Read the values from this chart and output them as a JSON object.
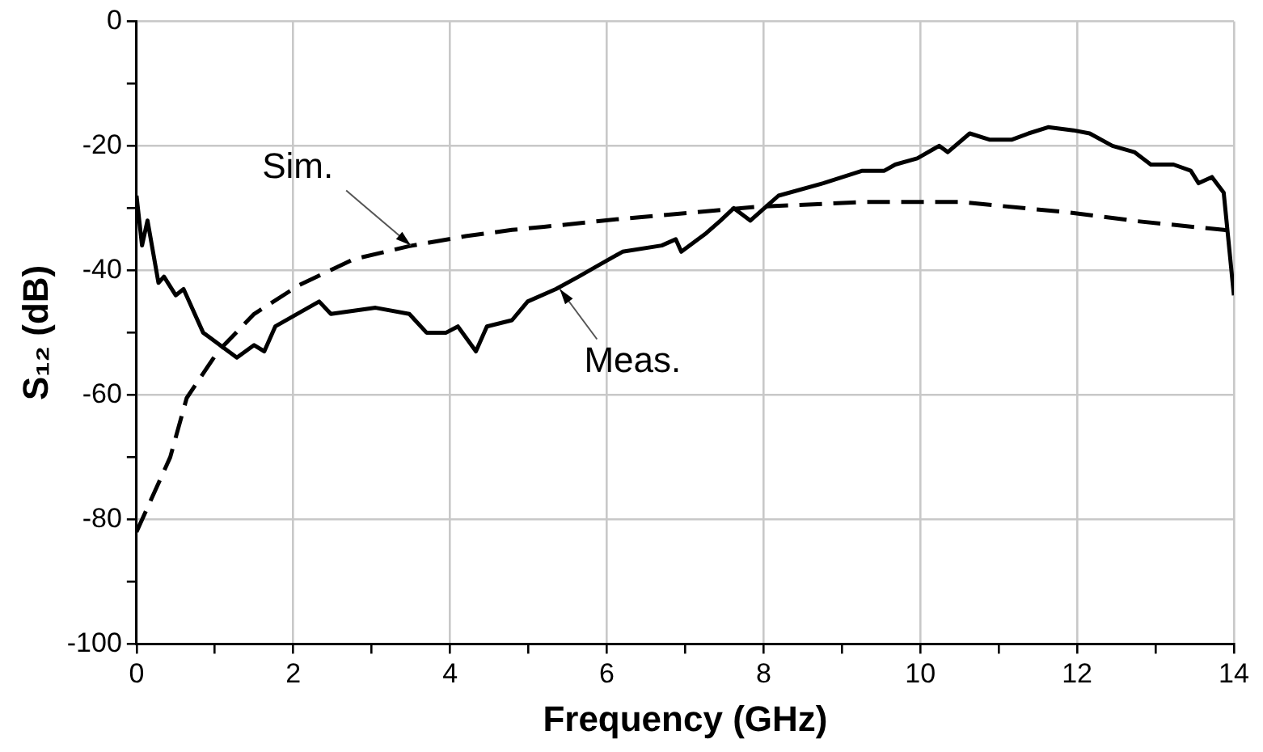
{
  "chart_data": {
    "type": "line",
    "xlabel": "Frequency (GHz)",
    "ylabel": "S₁₂ (dB)",
    "xlim": [
      0,
      14
    ],
    "xticks": [
      0,
      {
        "value": 1,
        "label": null
      },
      2,
      {
        "value": 3,
        "label": null
      },
      4,
      {
        "value": 5,
        "label": null
      },
      6,
      {
        "value": 7,
        "label": null
      },
      8,
      {
        "value": 9,
        "label": null
      },
      10,
      {
        "value": 11,
        "label": null
      },
      12,
      {
        "value": 13,
        "label": null
      },
      14
    ],
    "ylim": [
      -100,
      0
    ],
    "yticks": [
      -100,
      {
        "value": -90,
        "label": null
      },
      -80,
      {
        "value": -70,
        "label": null
      },
      -60,
      {
        "value": -50,
        "label": null
      },
      -40,
      {
        "value": -30,
        "label": null
      },
      -20,
      {
        "value": -10,
        "label": null
      },
      0
    ],
    "grid": true,
    "legend": false,
    "marker": "none",
    "series": [
      {
        "color": "#000000",
        "line_style": "solid",
        "x": [
          0,
          0.07,
          0.14,
          0.28,
          0.35,
          0.5,
          0.6,
          0.85,
          1.28,
          1.5,
          1.63,
          1.77,
          2.33,
          2.48,
          3.05,
          3.48,
          3.7,
          3.95,
          4.1,
          4.33,
          4.47,
          4.79,
          4.99,
          5.35,
          5.64,
          5.92,
          6.2,
          6.7,
          6.88,
          6.95,
          7.27,
          7.45,
          7.62,
          7.83,
          8.19,
          8.76,
          9.26,
          9.54,
          9.68,
          9.96,
          10.17,
          10.24,
          10.35,
          10.63,
          10.88,
          11.17,
          11.38,
          11.63,
          11.95,
          12.16,
          12.45,
          12.73,
          12.94,
          13.23,
          13.45,
          13.55,
          13.72,
          13.87,
          14
        ],
        "values": [
          -28,
          -36,
          -32,
          -42,
          -41,
          -44,
          -43,
          -50,
          -54,
          -52,
          -53,
          -49,
          -45,
          -47,
          -46,
          -47,
          -50,
          -50,
          -49,
          -53,
          -49,
          -48,
          -45,
          -43,
          -41,
          -39,
          -37,
          -36,
          -35,
          -37,
          -34,
          -32,
          -30,
          -32,
          -28,
          -26,
          -24,
          -24,
          -23,
          -22,
          -20.5,
          -20,
          -21,
          -18,
          -19,
          -19,
          -18,
          -17,
          -17.5,
          -18,
          -20,
          -21,
          -23,
          -23,
          -24,
          -26,
          -25,
          -27.5,
          -44
        ]
      },
      {
        "color": "#000000",
        "line_style": "dashed",
        "x": [
          0,
          0.43,
          0.64,
          1.04,
          1.5,
          2.07,
          2.77,
          3.48,
          4.2,
          4.79,
          5.2,
          6.2,
          7.9,
          9.3,
          10.5,
          11.9,
          12.77,
          13.87,
          14
        ],
        "values": [
          -82,
          -70,
          -60.5,
          -53,
          -47,
          -42.4,
          -38.2,
          -36.1,
          -34.5,
          -33.5,
          -33,
          -31.7,
          -29.8,
          -29,
          -29,
          -30.7,
          -32.1,
          -33.5,
          -33.7
        ]
      }
    ],
    "annotations": [
      {
        "text": "Sim.",
        "x": 3.5,
        "y": -36
      },
      {
        "text": "Meas.",
        "x": 5.4,
        "y": -43
      }
    ]
  }
}
